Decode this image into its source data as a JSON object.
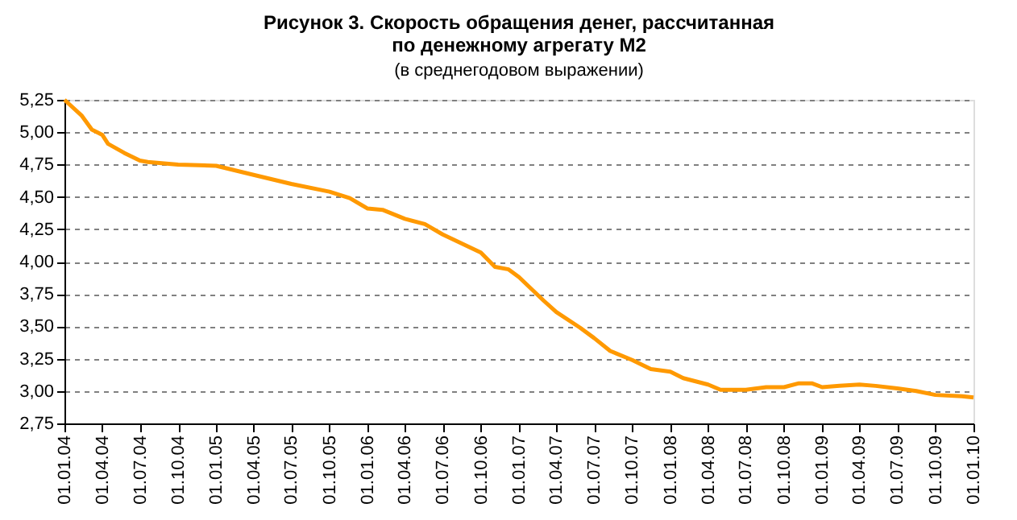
{
  "chart_data": {
    "type": "line",
    "title": "Рисунок 3. Скорость обращения денег, рассчитанная по денежному агрегату М2",
    "subtitle": "(в среднегодовом выражении)",
    "x": [
      "2004-01-01",
      "2004-02-11",
      "2004-03-07",
      "2004-04-01",
      "2004-04-15",
      "2004-05-24",
      "2004-07-01",
      "2004-07-20",
      "2004-10-01",
      "2005-01-01",
      "2005-04-01",
      "2005-07-01",
      "2005-10-01",
      "2005-11-19",
      "2006-01-01",
      "2006-02-06",
      "2006-04-01",
      "2006-05-19",
      "2006-07-01",
      "2006-10-01",
      "2006-11-04",
      "2006-12-07",
      "2007-01-01",
      "2007-03-01",
      "2007-04-01",
      "2007-05-28",
      "2007-07-01",
      "2007-08-09",
      "2007-10-01",
      "2007-11-15",
      "2008-01-01",
      "2008-02-01",
      "2008-04-01",
      "2008-05-01",
      "2008-07-01",
      "2008-08-19",
      "2008-10-01",
      "2008-11-06",
      "2008-12-07",
      "2009-01-01",
      "2009-02-12",
      "2009-04-01",
      "2009-05-10",
      "2009-07-01",
      "2009-08-16",
      "2009-10-01",
      "2009-12-04",
      "2010-01-01"
    ],
    "series": [
      {
        "color": "#ff9900",
        "values": [
          5.25,
          5.13,
          5.02,
          4.98,
          4.91,
          4.84,
          4.78,
          4.77,
          4.75,
          4.74,
          4.67,
          4.6,
          4.54,
          4.49,
          4.41,
          4.4,
          4.33,
          4.29,
          4.21,
          4.07,
          3.96,
          3.94,
          3.88,
          3.7,
          3.61,
          3.49,
          3.41,
          3.31,
          3.24,
          3.17,
          3.15,
          3.1,
          3.05,
          3.01,
          3.01,
          3.03,
          3.03,
          3.06,
          3.06,
          3.03,
          3.04,
          3.05,
          3.04,
          3.02,
          3.0,
          2.97,
          2.96,
          2.95
        ]
      }
    ],
    "xlim": [
      "2004-01-01",
      "2010-01-01"
    ],
    "xticks": [
      {
        "value": "2004-01-01",
        "label": "01.01.04"
      },
      {
        "value": "2004-04-01",
        "label": "01.04.04"
      },
      {
        "value": "2004-07-01",
        "label": "01.07.04"
      },
      {
        "value": "2004-10-01",
        "label": "01.10.04"
      },
      {
        "value": "2005-01-01",
        "label": "01.01.05"
      },
      {
        "value": "2005-04-01",
        "label": "01.04.05"
      },
      {
        "value": "2005-07-01",
        "label": "01.07.05"
      },
      {
        "value": "2005-10-01",
        "label": "01.10.05"
      },
      {
        "value": "2006-01-01",
        "label": "01.01.06"
      },
      {
        "value": "2006-04-01",
        "label": "01.04.06"
      },
      {
        "value": "2006-07-01",
        "label": "01.07.06"
      },
      {
        "value": "2006-10-01",
        "label": "01.10.06"
      },
      {
        "value": "2007-01-01",
        "label": "01.01.07"
      },
      {
        "value": "2007-04-01",
        "label": "01.04.07"
      },
      {
        "value": "2007-07-01",
        "label": "01.07.07"
      },
      {
        "value": "2007-10-01",
        "label": "01.10.07"
      },
      {
        "value": "2008-01-01",
        "label": "01.01.08"
      },
      {
        "value": "2008-04-01",
        "label": "01.04.08"
      },
      {
        "value": "2008-07-01",
        "label": "01.07.08"
      },
      {
        "value": "2008-10-01",
        "label": "01.10.08"
      },
      {
        "value": "2009-01-01",
        "label": "01.01.09"
      },
      {
        "value": "2009-04-01",
        "label": "01.04.09"
      },
      {
        "value": "2009-07-01",
        "label": "01.07.09"
      },
      {
        "value": "2009-10-01",
        "label": "01.10.09"
      },
      {
        "value": "2010-01-01",
        "label": "01.01.10"
      }
    ],
    "ylim": [
      2.75,
      5.25
    ],
    "yticks": [
      {
        "value": 2.75,
        "label": "2,75"
      },
      {
        "value": 3.0,
        "label": "3,00"
      },
      {
        "value": 3.25,
        "label": "3,25"
      },
      {
        "value": 3.5,
        "label": "3,50"
      },
      {
        "value": 3.75,
        "label": "3,75"
      },
      {
        "value": 4.0,
        "label": "4,00"
      },
      {
        "value": 4.25,
        "label": "4,25"
      },
      {
        "value": 4.5,
        "label": "4,50"
      },
      {
        "value": 4.75,
        "label": "4,75"
      },
      {
        "value": 5.0,
        "label": "5,00"
      },
      {
        "value": 5.25,
        "label": "5,25"
      }
    ],
    "grid": "y",
    "marker": "none",
    "line_style": "solid"
  }
}
